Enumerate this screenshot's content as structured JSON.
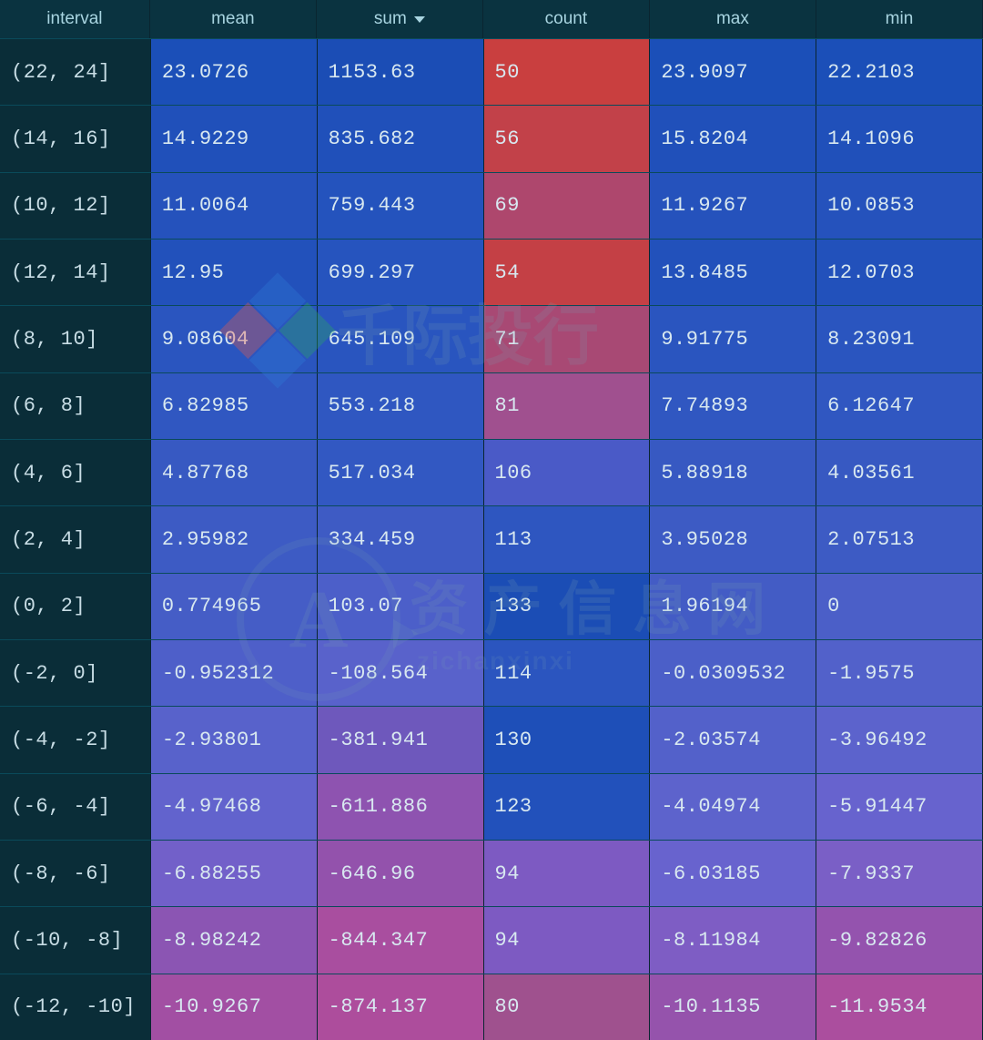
{
  "table": {
    "type": "heatmap-table",
    "background_color": "#0a2530",
    "header_bg": "#0a3340",
    "header_text_color": "#a8d4e0",
    "border_color": "#0a4a5a",
    "cell_text_color": "#d8e8f0",
    "header_fontsize": 19,
    "cell_fontsize": 22,
    "font_family_data": "Courier New",
    "columns": [
      {
        "key": "interval",
        "label": "interval",
        "sortable": false
      },
      {
        "key": "mean",
        "label": "mean",
        "sortable": false
      },
      {
        "key": "sum",
        "label": "sum",
        "sortable": true,
        "sort_dir": "desc"
      },
      {
        "key": "count",
        "label": "count",
        "sortable": false
      },
      {
        "key": "max",
        "label": "max",
        "sortable": false
      },
      {
        "key": "min",
        "label": "min",
        "sortable": false
      }
    ],
    "rows": [
      {
        "interval": "(22, 24]",
        "mean": "23.0726",
        "sum": "1153.63",
        "count": "50",
        "max": "23.9097",
        "min": "22.2103",
        "bg": {
          "mean": "#1b4fb8",
          "sum": "#1b4db5",
          "count": "#c93f3f",
          "max": "#1b4fb8",
          "min": "#1b4fb8"
        }
      },
      {
        "interval": "(14, 16]",
        "mean": "14.9229",
        "sum": "835.682",
        "count": "56",
        "max": "15.8204",
        "min": "14.1096",
        "bg": {
          "mean": "#2050ba",
          "sum": "#2050ba",
          "count": "#c24149",
          "max": "#2050ba",
          "min": "#2050ba"
        }
      },
      {
        "interval": "(10, 12]",
        "mean": "11.0064",
        "sum": "759.443",
        "count": "69",
        "max": "11.9267",
        "min": "10.0853",
        "bg": {
          "mean": "#2552bc",
          "sum": "#2453bd",
          "count": "#ae476d",
          "max": "#2552bc",
          "min": "#2552bc"
        }
      },
      {
        "interval": "(12, 14]",
        "mean": "12.95",
        "sum": "699.297",
        "count": "54",
        "max": "13.8485",
        "min": "12.0703",
        "bg": {
          "mean": "#2251bb",
          "sum": "#2654be",
          "count": "#c44045",
          "max": "#2251bb",
          "min": "#2251bb"
        }
      },
      {
        "interval": "(8, 10]",
        "mean": "9.08604",
        "sum": "645.109",
        "count": "71",
        "max": "9.91775",
        "min": "8.23091",
        "bg": {
          "mean": "#2a55bf",
          "sum": "#2955bf",
          "count": "#a84974",
          "max": "#2a55bf",
          "min": "#2a55bf"
        }
      },
      {
        "interval": "(6, 8]",
        "mean": "6.82985",
        "sum": "553.218",
        "count": "81",
        "max": "7.74893",
        "min": "6.12647",
        "bg": {
          "mean": "#3057c1",
          "sum": "#2f57c1",
          "count": "#a0508f",
          "max": "#3057c1",
          "min": "#3057c1"
        }
      },
      {
        "interval": "(4, 6]",
        "mean": "4.87768",
        "sum": "517.034",
        "count": "106",
        "max": "5.88918",
        "min": "4.03561",
        "bg": {
          "mean": "#3759c2",
          "sum": "#3258c2",
          "count": "#4a5ac7",
          "max": "#3759c2",
          "min": "#3759c2"
        }
      },
      {
        "interval": "(2, 4]",
        "mean": "2.95982",
        "sum": "334.459",
        "count": "113",
        "max": "3.95028",
        "min": "2.07513",
        "bg": {
          "mean": "#3d5bc4",
          "sum": "#3e5bc4",
          "count": "#2e56c0",
          "max": "#3d5bc4",
          "min": "#3d5bc4"
        }
      },
      {
        "interval": "(0, 2]",
        "mean": "0.774965",
        "sum": "103.07",
        "count": "133",
        "max": "1.96194",
        "min": "0",
        "bg": {
          "mean": "#455dc6",
          "sum": "#4c5fc9",
          "count": "#1b4db5",
          "max": "#435cc5",
          "min": "#4b5fc8"
        }
      },
      {
        "interval": "(-2, 0]",
        "mean": "-0.952312",
        "sum": "-108.564",
        "count": "114",
        "max": "-0.0309532",
        "min": "-1.9575",
        "bg": {
          "mean": "#4e5fc9",
          "sum": "#5962cb",
          "count": "#2b55bf",
          "max": "#4b5fc8",
          "min": "#5261ca"
        }
      },
      {
        "interval": "(-4, -2]",
        "mean": "-2.93801",
        "sum": "-381.941",
        "count": "130",
        "max": "-2.03574",
        "min": "-3.96492",
        "bg": {
          "mean": "#5862cb",
          "sum": "#6e58bc",
          "count": "#1e4fb8",
          "max": "#5361ca",
          "min": "#5c63cc"
        }
      },
      {
        "interval": "(-6, -4]",
        "mean": "-4.97468",
        "sum": "-611.886",
        "count": "123",
        "max": "-4.04974",
        "min": "-5.91447",
        "bg": {
          "mean": "#6263cd",
          "sum": "#8e53b0",
          "count": "#2251bb",
          "max": "#5d63cc",
          "min": "#6763ce"
        }
      },
      {
        "interval": "(-8, -6]",
        "mean": "-6.88255",
        "sum": "-646.96",
        "count": "94",
        "max": "-6.03185",
        "min": "-7.9337",
        "bg": {
          "mean": "#7260c9",
          "sum": "#9352ac",
          "count": "#7d5ac2",
          "max": "#6863ce",
          "min": "#7a5fc6"
        }
      },
      {
        "interval": "(-10, -8]",
        "mean": "-8.98242",
        "sum": "-844.347",
        "count": "94",
        "max": "-8.11984",
        "min": "-9.82826",
        "bg": {
          "mean": "#8b55b3",
          "sum": "#a94e9f",
          "count": "#7d5ac2",
          "max": "#7e5dc4",
          "min": "#9453ae"
        }
      },
      {
        "interval": "(-12, -10]",
        "mean": "-10.9267",
        "sum": "-874.137",
        "count": "80",
        "max": "-10.1135",
        "min": "-11.9534",
        "bg": {
          "mean": "#a24fa3",
          "sum": "#ad4d9c",
          "count": "#9f518e",
          "max": "#9553ac",
          "min": "#ab4e9e"
        }
      }
    ]
  },
  "watermarks": {
    "wm1_text": "千际投行",
    "wm2_main": "资 产 信 息 网",
    "wm2_sub": "zichanxinxi",
    "ring_text": "A"
  }
}
